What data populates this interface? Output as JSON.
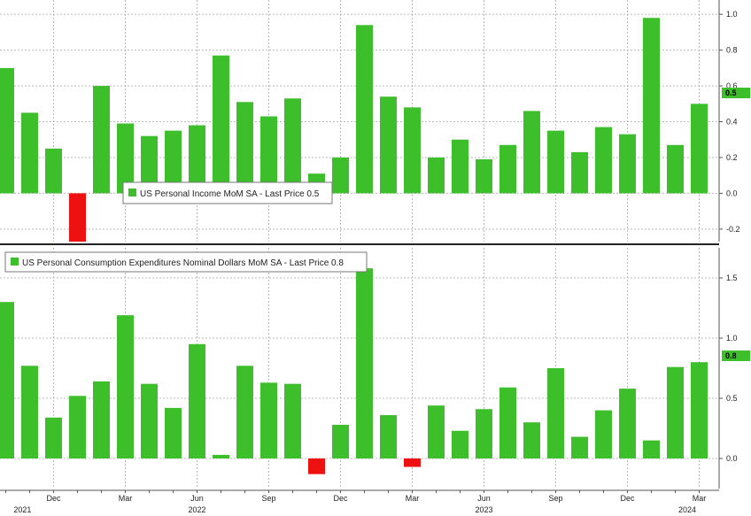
{
  "colors": {
    "positive": "#3dbf2c",
    "negative": "#ee1111",
    "grid": "#b9b9b9",
    "divider": "#222222",
    "badge": "#3dbf2c"
  },
  "chart_data": [
    {
      "type": "bar",
      "panel": "top",
      "legend": "US Personal Income MoM SA - Last Price 0.5",
      "last_price_label": "0.5",
      "last_price": 0.5,
      "ylim": [
        -0.27,
        1.08
      ],
      "y_ticks": [
        -0.2,
        0.0,
        0.2,
        0.4,
        0.6,
        0.8,
        1.0
      ],
      "y_tick_labels": [
        "-0.2",
        "0.0",
        "0.2",
        "0.4",
        "0.6",
        "0.8",
        "1.0"
      ],
      "grid": true,
      "legend_position": "middle",
      "categories": [
        "2021-10",
        "2021-11",
        "2021-12",
        "2022-01",
        "2022-02",
        "2022-03",
        "2022-04",
        "2022-05",
        "2022-06",
        "2022-07",
        "2022-08",
        "2022-09",
        "2022-10",
        "2022-11",
        "2022-12",
        "2023-01",
        "2023-02",
        "2023-03",
        "2023-04",
        "2023-05",
        "2023-06",
        "2023-07",
        "2023-08",
        "2023-09",
        "2023-10",
        "2023-11",
        "2023-12",
        "2024-01",
        "2024-02",
        "2024-03"
      ],
      "values": [
        0.7,
        0.45,
        0.25,
        -0.27,
        0.6,
        0.39,
        0.32,
        0.35,
        0.38,
        0.77,
        0.51,
        0.43,
        0.53,
        0.11,
        0.2,
        0.94,
        0.54,
        0.48,
        0.2,
        0.3,
        0.19,
        0.27,
        0.46,
        0.35,
        0.23,
        0.37,
        0.33,
        0.98,
        0.27,
        0.5
      ]
    },
    {
      "type": "bar",
      "panel": "bottom",
      "legend": "US Personal Consumption Expenditures Nominal Dollars MoM SA - Last Price 0.8",
      "last_price_label": "0.8",
      "last_price": 0.8,
      "ylim": [
        -0.25,
        1.75
      ],
      "y_ticks": [
        0.0,
        0.5,
        1.0,
        1.5
      ],
      "y_tick_labels": [
        "0.0",
        "0.5",
        "1.0",
        "1.5"
      ],
      "grid": true,
      "legend_position": "top-left",
      "categories": [
        "2021-10",
        "2021-11",
        "2021-12",
        "2022-01",
        "2022-02",
        "2022-03",
        "2022-04",
        "2022-05",
        "2022-06",
        "2022-07",
        "2022-08",
        "2022-09",
        "2022-10",
        "2022-11",
        "2022-12",
        "2023-01",
        "2023-02",
        "2023-03",
        "2023-04",
        "2023-05",
        "2023-06",
        "2023-07",
        "2023-08",
        "2023-09",
        "2023-10",
        "2023-11",
        "2023-12",
        "2024-01",
        "2024-02",
        "2024-03"
      ],
      "values": [
        1.3,
        0.77,
        0.34,
        0.52,
        0.64,
        1.19,
        0.62,
        0.42,
        0.95,
        0.03,
        0.77,
        0.63,
        0.62,
        -0.13,
        0.28,
        1.58,
        0.36,
        -0.07,
        0.44,
        0.23,
        0.41,
        0.59,
        0.3,
        0.75,
        0.18,
        0.4,
        0.58,
        0.15,
        0.76,
        0.8
      ]
    }
  ],
  "x_axis": {
    "tick_labels": [
      {
        "label": "Dec",
        "index": 2
      },
      {
        "label": "Mar",
        "index": 5
      },
      {
        "label": "Jun",
        "index": 8
      },
      {
        "label": "Sep",
        "index": 11
      },
      {
        "label": "Dec",
        "index": 14
      },
      {
        "label": "Mar",
        "index": 17
      },
      {
        "label": "Jun",
        "index": 20
      },
      {
        "label": "Sep",
        "index": 23
      },
      {
        "label": "Dec",
        "index": 26
      },
      {
        "label": "Mar",
        "index": 29
      }
    ],
    "year_labels": [
      {
        "label": "2021",
        "index": 0.7
      },
      {
        "label": "2022",
        "index": 8
      },
      {
        "label": "2023",
        "index": 20
      },
      {
        "label": "2024",
        "index": 28.5
      }
    ]
  }
}
